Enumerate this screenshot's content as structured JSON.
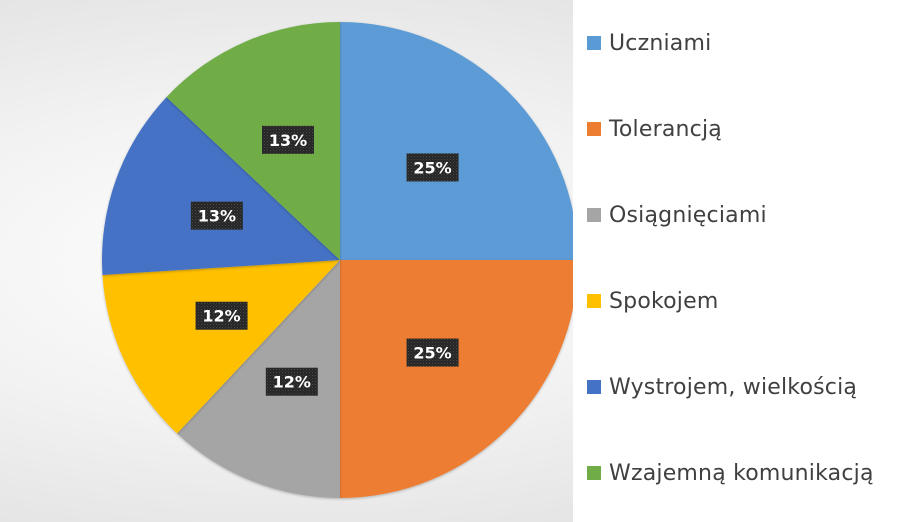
{
  "chart_data": {
    "type": "pie",
    "categories": [
      "Uczniami",
      "Tolerancją",
      "Osiągnięciami",
      "Spokojem",
      "Wystrojem, wielkością",
      "Wzajemną komunikacją"
    ],
    "values": [
      25,
      25,
      12,
      12,
      13,
      13
    ],
    "data_labels": [
      "25%",
      "25%",
      "12%",
      "12%",
      "13%",
      "13%"
    ],
    "colors": [
      "#5B9BD5",
      "#ED7D31",
      "#A5A5A5",
      "#FFC000",
      "#4472C4",
      "#70AD47"
    ],
    "legend_position": "right",
    "title": ""
  }
}
